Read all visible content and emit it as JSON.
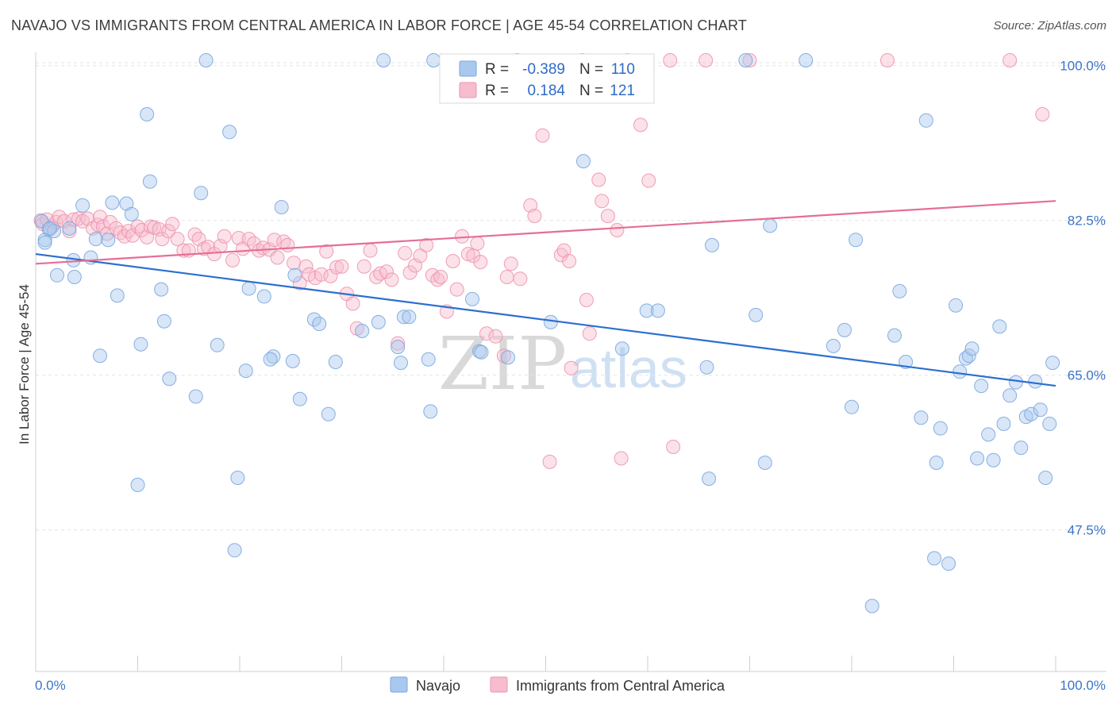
{
  "header": {
    "title": "NAVAJO VS IMMIGRANTS FROM CENTRAL AMERICA IN LABOR FORCE | AGE 45-54 CORRELATION CHART",
    "source": "Source: ZipAtlas.com"
  },
  "watermark": {
    "zip": "ZIP",
    "atlas": "atlas"
  },
  "stats_box": {
    "rows": [
      {
        "r_label": "R =",
        "r_value": "-0.389",
        "n_label": "N =",
        "n_value": "110",
        "color": "#a9c8ee",
        "stroke": "#7aa7df"
      },
      {
        "r_label": "R =",
        "r_value": "0.184",
        "n_label": "N =",
        "n_value": "121",
        "color": "#f7bccd",
        "stroke": "#ee94b0"
      }
    ]
  },
  "legend": {
    "items": [
      {
        "label": "Navajo",
        "color": "#a9c8ee",
        "stroke": "#7aa7df"
      },
      {
        "label": "Immigrants from Central America",
        "color": "#f7bccd",
        "stroke": "#ee94b0"
      }
    ]
  },
  "chart_data": {
    "type": "scatter",
    "title": "NAVAJO VS IMMIGRANTS FROM CENTRAL AMERICA IN LABOR FORCE | AGE 45-54 CORRELATION CHART",
    "xlabel": "",
    "ylabel": "In Labor Force | Age 45-54",
    "xlim": [
      0,
      100
    ],
    "ylim": [
      31.5,
      101.5
    ],
    "x_tick_labels": [
      "0.0%",
      "100.0%"
    ],
    "y_ticks": [
      47.5,
      65.0,
      82.5,
      100.0
    ],
    "y_tick_labels": [
      "47.5%",
      "65.0%",
      "82.5%",
      "100.0%"
    ],
    "grid": "horizontal dashed",
    "legend_position": "bottom-center",
    "series": [
      {
        "name": "Navajo",
        "color": "#a9c8ee",
        "stroke": "#7aa7df",
        "line_color": "#2b6fcf",
        "trend": {
          "x": [
            0,
            100
          ],
          "y": [
            78.7,
            63.8
          ]
        },
        "points": [
          [
            0.6,
            82.4
          ],
          [
            0.9,
            80.3
          ],
          [
            1.3,
            81.5
          ],
          [
            1.8,
            81.3
          ],
          [
            3.3,
            81.6
          ],
          [
            2.1,
            76.3
          ],
          [
            3.8,
            76.1
          ],
          [
            3.7,
            78.0
          ],
          [
            4.6,
            84.2
          ],
          [
            5.4,
            78.3
          ],
          [
            5.9,
            80.4
          ],
          [
            7.1,
            80.3
          ],
          [
            7.5,
            84.5
          ],
          [
            8.0,
            74.0
          ],
          [
            8.9,
            84.4
          ],
          [
            9.4,
            83.2
          ],
          [
            10.0,
            52.6
          ],
          [
            10.3,
            68.5
          ],
          [
            10.9,
            94.5
          ],
          [
            11.2,
            86.9
          ],
          [
            12.3,
            74.7
          ],
          [
            12.6,
            71.1
          ],
          [
            13.1,
            64.6
          ],
          [
            15.7,
            62.6
          ],
          [
            16.2,
            85.6
          ],
          [
            16.7,
            100.6
          ],
          [
            17.8,
            68.4
          ],
          [
            19.0,
            92.5
          ],
          [
            19.5,
            45.2
          ],
          [
            19.8,
            53.4
          ],
          [
            20.6,
            65.5
          ],
          [
            20.9,
            74.8
          ],
          [
            22.4,
            73.9
          ],
          [
            23.3,
            67.1
          ],
          [
            24.1,
            84.0
          ],
          [
            25.2,
            66.6
          ],
          [
            25.4,
            76.3
          ],
          [
            25.9,
            62.3
          ],
          [
            27.3,
            71.3
          ],
          [
            27.8,
            70.8
          ],
          [
            28.7,
            60.6
          ],
          [
            29.4,
            66.5
          ],
          [
            32.0,
            70.0
          ],
          [
            33.6,
            71.0
          ],
          [
            34.1,
            100.6
          ],
          [
            35.5,
            68.2
          ],
          [
            35.8,
            66.4
          ],
          [
            36.1,
            71.6
          ],
          [
            36.6,
            71.6
          ],
          [
            38.5,
            66.8
          ],
          [
            38.7,
            60.9
          ],
          [
            39.0,
            100.6
          ],
          [
            42.8,
            73.6
          ],
          [
            43.5,
            67.7
          ],
          [
            43.7,
            67.6
          ],
          [
            46.3,
            67.0
          ],
          [
            47.2,
            100.6
          ],
          [
            50.5,
            71.0
          ],
          [
            53.7,
            89.2
          ],
          [
            53.6,
            100.6
          ],
          [
            57.5,
            68.0
          ],
          [
            59.9,
            72.3
          ],
          [
            61.0,
            72.3
          ],
          [
            65.8,
            65.9
          ],
          [
            66.0,
            53.3
          ],
          [
            66.3,
            79.7
          ],
          [
            69.6,
            100.6
          ],
          [
            70.6,
            71.8
          ],
          [
            71.5,
            55.1
          ],
          [
            72.0,
            81.9
          ],
          [
            75.5,
            100.6
          ],
          [
            78.2,
            68.3
          ],
          [
            79.3,
            70.1
          ],
          [
            80.4,
            80.3
          ],
          [
            80.0,
            61.4
          ],
          [
            82.0,
            38.9
          ],
          [
            84.2,
            69.5
          ],
          [
            84.7,
            74.5
          ],
          [
            85.3,
            66.5
          ],
          [
            87.3,
            93.8
          ],
          [
            86.8,
            60.2
          ],
          [
            88.1,
            44.3
          ],
          [
            88.3,
            55.1
          ],
          [
            88.7,
            59.0
          ],
          [
            89.5,
            43.7
          ],
          [
            90.2,
            72.9
          ],
          [
            90.6,
            65.4
          ],
          [
            91.2,
            66.9
          ],
          [
            91.5,
            67.2
          ],
          [
            91.8,
            68.0
          ],
          [
            92.3,
            55.6
          ],
          [
            92.7,
            63.8
          ],
          [
            93.4,
            58.3
          ],
          [
            93.9,
            55.4
          ],
          [
            94.5,
            70.5
          ],
          [
            94.9,
            59.5
          ],
          [
            95.5,
            62.7
          ],
          [
            96.1,
            64.2
          ],
          [
            96.6,
            56.8
          ],
          [
            97.1,
            60.3
          ],
          [
            97.6,
            60.6
          ],
          [
            98.0,
            64.3
          ],
          [
            98.5,
            61.1
          ],
          [
            99.0,
            53.4
          ],
          [
            99.4,
            59.5
          ],
          [
            99.7,
            66.4
          ],
          [
            1.4,
            81.6
          ],
          [
            0.9,
            80.0
          ],
          [
            6.3,
            67.2
          ],
          [
            23.0,
            66.8
          ]
        ]
      },
      {
        "name": "Immigrants from Central America",
        "color": "#f7bccd",
        "stroke": "#ee94b0",
        "line_color": "#e46e98",
        "trend": {
          "x": [
            0,
            100
          ],
          "y": [
            77.6,
            84.7
          ]
        },
        "points": [
          [
            0.5,
            82.5
          ],
          [
            0.7,
            82.1
          ],
          [
            1.1,
            82.6
          ],
          [
            1.6,
            81.8
          ],
          [
            2.0,
            82.3
          ],
          [
            2.3,
            82.9
          ],
          [
            2.8,
            82.4
          ],
          [
            3.3,
            81.3
          ],
          [
            3.7,
            82.6
          ],
          [
            4.2,
            82.7
          ],
          [
            4.6,
            82.4
          ],
          [
            5.1,
            82.7
          ],
          [
            5.6,
            81.6
          ],
          [
            6.1,
            82.0
          ],
          [
            6.3,
            82.9
          ],
          [
            6.6,
            81.8
          ],
          [
            7.0,
            81.0
          ],
          [
            7.3,
            82.3
          ],
          [
            7.9,
            81.6
          ],
          [
            8.3,
            81.1
          ],
          [
            8.7,
            80.7
          ],
          [
            9.1,
            81.3
          ],
          [
            9.5,
            80.8
          ],
          [
            10.0,
            81.8
          ],
          [
            10.4,
            81.4
          ],
          [
            10.9,
            80.6
          ],
          [
            11.3,
            81.8
          ],
          [
            11.6,
            81.7
          ],
          [
            12.1,
            81.5
          ],
          [
            12.4,
            80.4
          ],
          [
            13.0,
            81.3
          ],
          [
            13.4,
            82.1
          ],
          [
            13.9,
            80.4
          ],
          [
            14.5,
            79.1
          ],
          [
            15.0,
            79.1
          ],
          [
            15.6,
            80.9
          ],
          [
            16.0,
            80.4
          ],
          [
            16.5,
            79.3
          ],
          [
            16.9,
            79.5
          ],
          [
            17.5,
            78.7
          ],
          [
            18.1,
            79.6
          ],
          [
            18.5,
            80.7
          ],
          [
            19.3,
            78.0
          ],
          [
            19.9,
            80.5
          ],
          [
            20.3,
            79.3
          ],
          [
            20.9,
            80.4
          ],
          [
            21.4,
            79.9
          ],
          [
            21.9,
            79.1
          ],
          [
            22.3,
            79.4
          ],
          [
            22.9,
            79.2
          ],
          [
            23.4,
            80.3
          ],
          [
            23.7,
            78.3
          ],
          [
            24.3,
            80.1
          ],
          [
            24.7,
            79.7
          ],
          [
            25.3,
            77.7
          ],
          [
            25.9,
            75.4
          ],
          [
            26.5,
            77.3
          ],
          [
            26.8,
            76.4
          ],
          [
            27.4,
            76.0
          ],
          [
            28.0,
            76.4
          ],
          [
            28.5,
            79.0
          ],
          [
            28.9,
            76.2
          ],
          [
            29.5,
            77.2
          ],
          [
            30.0,
            77.3
          ],
          [
            30.5,
            74.2
          ],
          [
            31.1,
            73.1
          ],
          [
            31.5,
            70.3
          ],
          [
            32.2,
            77.3
          ],
          [
            32.8,
            79.1
          ],
          [
            33.4,
            76.1
          ],
          [
            33.8,
            76.5
          ],
          [
            34.4,
            76.7
          ],
          [
            34.9,
            75.8
          ],
          [
            35.5,
            68.6
          ],
          [
            36.2,
            78.8
          ],
          [
            36.7,
            76.6
          ],
          [
            37.2,
            77.4
          ],
          [
            37.7,
            78.5
          ],
          [
            38.3,
            79.7
          ],
          [
            38.9,
            76.3
          ],
          [
            39.4,
            75.8
          ],
          [
            39.7,
            76.1
          ],
          [
            40.3,
            72.2
          ],
          [
            40.9,
            77.9
          ],
          [
            41.3,
            74.7
          ],
          [
            41.8,
            80.7
          ],
          [
            42.4,
            78.7
          ],
          [
            42.9,
            78.5
          ],
          [
            43.3,
            79.9
          ],
          [
            43.6,
            77.8
          ],
          [
            44.2,
            69.7
          ],
          [
            45.1,
            69.4
          ],
          [
            45.9,
            67.2
          ],
          [
            46.2,
            76.1
          ],
          [
            46.6,
            77.6
          ],
          [
            47.5,
            75.9
          ],
          [
            48.5,
            84.2
          ],
          [
            48.9,
            83.0
          ],
          [
            49.7,
            92.1
          ],
          [
            50.4,
            55.2
          ],
          [
            51.5,
            78.6
          ],
          [
            51.8,
            79.1
          ],
          [
            52.3,
            77.9
          ],
          [
            52.5,
            65.8
          ],
          [
            54.0,
            73.5
          ],
          [
            54.3,
            69.7
          ],
          [
            55.2,
            87.1
          ],
          [
            55.5,
            84.7
          ],
          [
            56.1,
            83.0
          ],
          [
            57.0,
            81.4
          ],
          [
            57.4,
            55.6
          ],
          [
            58.0,
            100.6
          ],
          [
            59.3,
            93.3
          ],
          [
            60.1,
            87.0
          ],
          [
            62.5,
            56.9
          ],
          [
            62.2,
            100.6
          ],
          [
            65.7,
            100.6
          ],
          [
            70.0,
            100.6
          ],
          [
            83.5,
            100.6
          ],
          [
            95.5,
            100.6
          ],
          [
            98.7,
            94.5
          ]
        ]
      }
    ]
  }
}
